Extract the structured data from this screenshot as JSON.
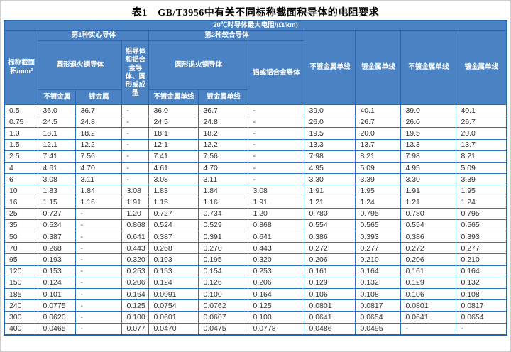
{
  "page": {
    "title": "表1　GB/T3956中有关不同标称截面积导体的电阻要求"
  },
  "table": {
    "top_header": "20℃时导体最大电阻/(Ω/km)",
    "col1_header": "标称截面积/mm²",
    "group_headers": [
      "第1种实心导体",
      "第2种绞合导体"
    ],
    "solid": {
      "copper": "圆形退火铜导体",
      "copper_subs": [
        "不镀金属",
        "镀金属"
      ],
      "aluminum": "铝导体和铝合金导体、圆形或成型"
    },
    "stranded": {
      "copper": "圆形退火铜导体",
      "copper_subs": [
        "不镀金属单线",
        "镀金属单线"
      ],
      "aluminum": "铝或铝合金导体"
    },
    "right_headers": [
      "不镀金属单线",
      "镀金属单线",
      "不镀金属单线",
      "镀金属单线"
    ],
    "rows": [
      [
        "0.5",
        "36.0",
        "36.7",
        "-",
        "36.0",
        "36.7",
        "-",
        "39.0",
        "40.1",
        "39.0",
        "40.1"
      ],
      [
        "0.75",
        "24.5",
        "24.8",
        "-",
        "24.5",
        "24.8",
        "-",
        "26.0",
        "26.7",
        "26.0",
        "26.7"
      ],
      [
        "1.0",
        "18.1",
        "18.2",
        "-",
        "18.1",
        "18.2",
        "-",
        "19.5",
        "20.0",
        "19.5",
        "20.0"
      ],
      [
        "1.5",
        "12.1",
        "12.2",
        "-",
        "12.1",
        "12.2",
        "-",
        "13.3",
        "13.7",
        "13.3",
        "13.7"
      ],
      [
        "2.5",
        "7.41",
        "7.56",
        "-",
        "7.41",
        "7.56",
        "-",
        "7.98",
        "8.21",
        "7.98",
        "8.21"
      ],
      [
        "4",
        "4.61",
        "4.70",
        "-",
        "4.61",
        "4.70",
        "-",
        "4.95",
        "5.09",
        "4.95",
        "5.09"
      ],
      [
        "6",
        "3.08",
        "3.11",
        "-",
        "3.08",
        "3.11",
        "-",
        "3.30",
        "3.39",
        "3.30",
        "3.39"
      ],
      [
        "10",
        "1.83",
        "1.84",
        "3.08",
        "1.83",
        "1.84",
        "3.08",
        "1.91",
        "1.95",
        "1.91",
        "1.95"
      ],
      [
        "16",
        "1.15",
        "1.16",
        "1.91",
        "1.15",
        "1.16",
        "1.91",
        "1.21",
        "1.24",
        "1.21",
        "1.24"
      ],
      [
        "25",
        "0.727",
        "-",
        "1.20",
        "0.727",
        "0.734",
        "1.20",
        "0.780",
        "0.795",
        "0.780",
        "0.795"
      ],
      [
        "35",
        "0.524",
        "-",
        "0.868",
        "0.524",
        "0.529",
        "0.868",
        "0.554",
        "0.565",
        "0.554",
        "0.565"
      ],
      [
        "50",
        "0.387",
        "-",
        "0.641",
        "0.387",
        "0.391",
        "0.641",
        "0.386",
        "0.393",
        "0.386",
        "0.393"
      ],
      [
        "70",
        "0.268",
        "-",
        "0.443",
        "0.268",
        "0.270",
        "0.443",
        "0.272",
        "0.277",
        "0.272",
        "0.277"
      ],
      [
        "95",
        "0.193",
        "-",
        "0.320",
        "0.193",
        "0.195",
        "0.320",
        "0.206",
        "0.210",
        "0.206",
        "0.210"
      ],
      [
        "120",
        "0.153",
        "-",
        "0.253",
        "0.153",
        "0.154",
        "0.253",
        "0.161",
        "0.164",
        "0.161",
        "0.164"
      ],
      [
        "150",
        "0.124",
        "-",
        "0.206",
        "0.124",
        "0.126",
        "0.206",
        "0.129",
        "0.132",
        "0.129",
        "0.132"
      ],
      [
        "185",
        "0.101",
        "-",
        "0.164",
        "0.0991",
        "0.100",
        "0.164",
        "0.106",
        "0.108",
        "0.106",
        "0.108"
      ],
      [
        "240",
        "0.0775",
        "-",
        "0.125",
        "0.0754",
        "0.0762",
        "0.125",
        "0.0801",
        "0.0817",
        "0.0801",
        "0.0817"
      ],
      [
        "300",
        "0.0620",
        "-",
        "0.100",
        "0.0601",
        "0.0607",
        "0.100",
        "0.0641",
        "0.0654",
        "0.0641",
        "0.0654"
      ],
      [
        "400",
        "0.0465",
        "-",
        "0.077",
        "0.0470",
        "0.0475",
        "0.0778",
        "0.0486",
        "0.0495",
        "-",
        "-"
      ]
    ]
  },
  "colors": {
    "header_bg": "#4a82c4",
    "header_border": "#2a66ad",
    "body_border": "#3274ba",
    "body_text": "#333333"
  }
}
